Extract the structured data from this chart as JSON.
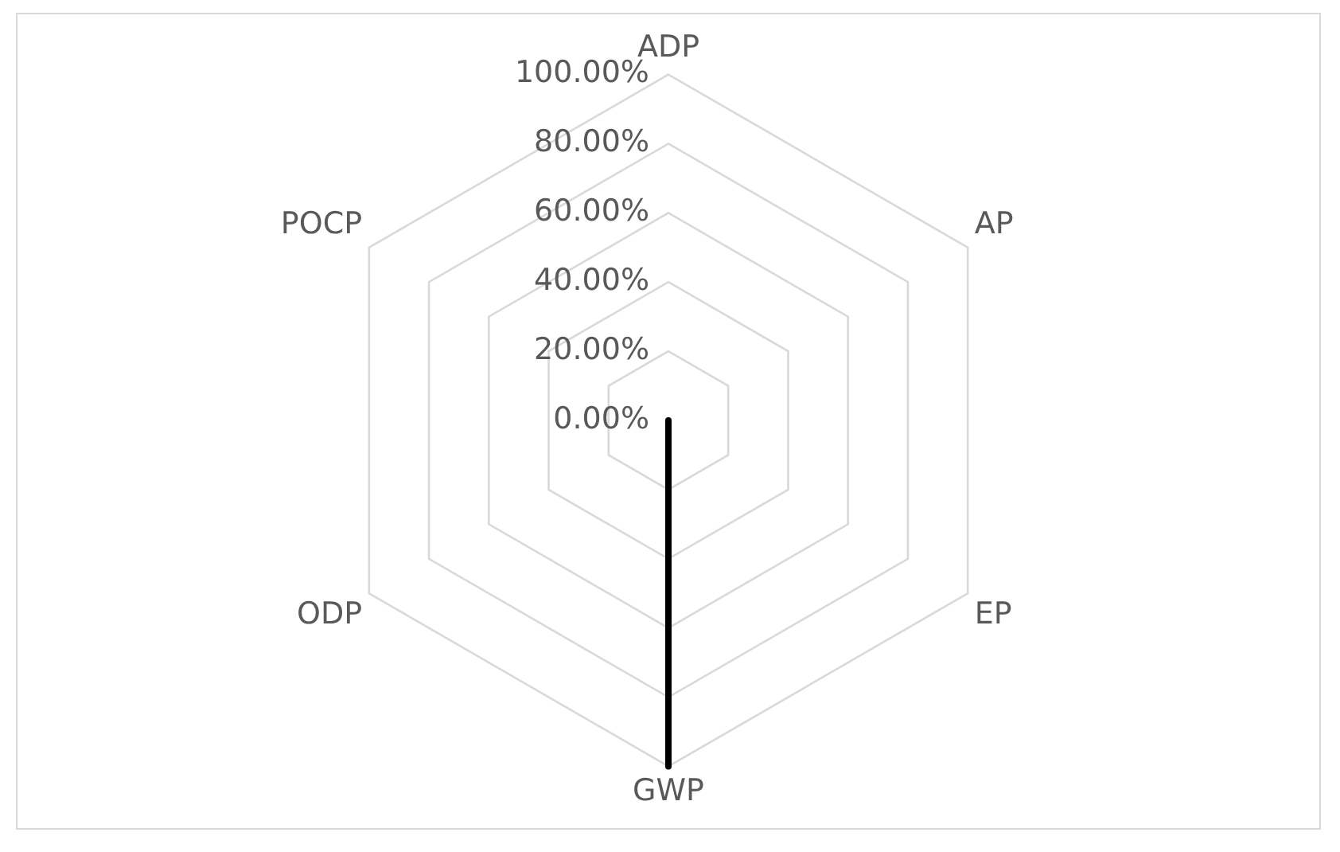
{
  "chart_data": {
    "type": "radar",
    "categories": [
      "ADP",
      "AP",
      "EP",
      "GWP",
      "ODP",
      "POCP"
    ],
    "series": [
      {
        "color": "#000000",
        "values": [
          0,
          0,
          0,
          100,
          0,
          0
        ]
      }
    ],
    "ylim": [
      0,
      100
    ],
    "yticks": [
      {
        "value": 0,
        "label": "0.00%"
      },
      {
        "value": 20,
        "label": "20.00%"
      },
      {
        "value": 40,
        "label": "40.00%"
      },
      {
        "value": 60,
        "label": "60.00%"
      },
      {
        "value": 80,
        "label": "80.00%"
      },
      {
        "value": 100,
        "label": "100.00%"
      }
    ],
    "grid": true,
    "legend": false,
    "marker": "none",
    "line_style": "solid"
  }
}
